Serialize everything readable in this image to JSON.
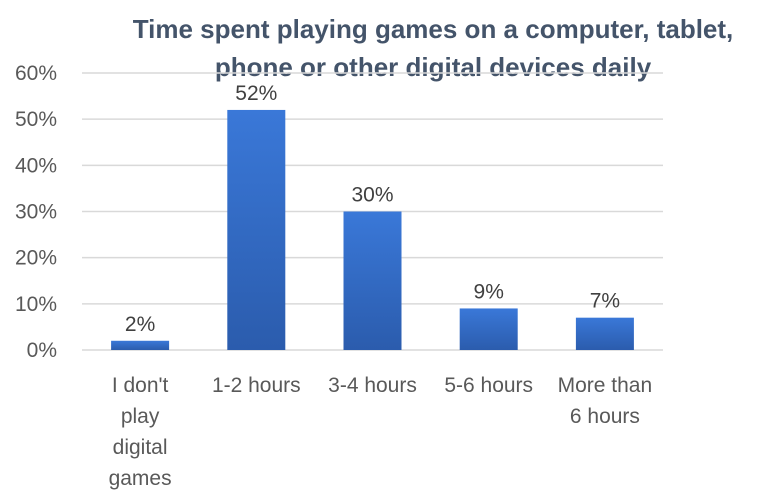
{
  "colors": {
    "bar_top": "#3a78d8",
    "bar_bottom": "#2b5cad",
    "grid": "#d9d9d9",
    "title": "#44546a",
    "axis_text": "#595959"
  },
  "chart_data": {
    "type": "bar",
    "title_line1": "Time spent playing games on a computer, tablet,",
    "title_line2": "phone or other digital devices daily",
    "categories": [
      [
        "I don't",
        "play",
        "digital",
        "games"
      ],
      [
        "1-2 hours"
      ],
      [
        "3-4 hours"
      ],
      [
        "5-6 hours"
      ],
      [
        "More than",
        "6 hours"
      ]
    ],
    "values": [
      2,
      52,
      30,
      9,
      7
    ],
    "data_labels": [
      "2%",
      "52%",
      "30%",
      "9%",
      "7%"
    ],
    "y_ticks": [
      "0%",
      "10%",
      "20%",
      "30%",
      "40%",
      "50%",
      "60%"
    ],
    "ylim": [
      0,
      60
    ],
    "grid": true,
    "legend": "none"
  }
}
